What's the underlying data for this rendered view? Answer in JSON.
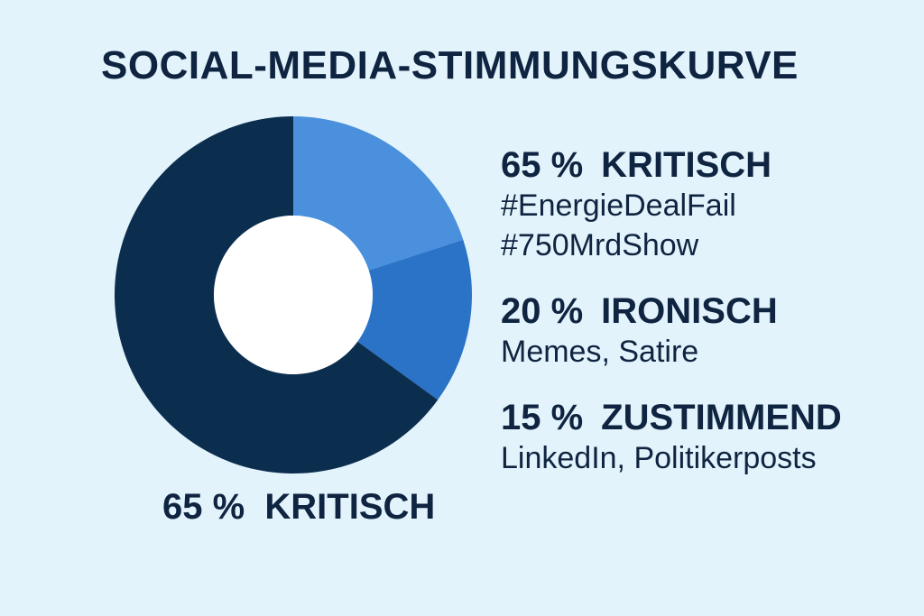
{
  "colors": {
    "background": "#e3f3fc",
    "text": "#0f2440",
    "kritisch": "#0b2d4e",
    "ironisch": "#4a90dc",
    "zustimmend": "#2b73c6"
  },
  "header": {
    "title": "SOCIAL-MEDIA-STIMMUNGSKURVE"
  },
  "caption": {
    "pct": "65 %",
    "label": "KRITISCH"
  },
  "legend": [
    {
      "pct": "65 %",
      "label": "KRITISCH",
      "lines": [
        "#EnergieDealFail",
        "#750MrdShow"
      ]
    },
    {
      "pct": "20 %",
      "label": "IRONISCH",
      "lines": [
        "Memes, Satire"
      ]
    },
    {
      "pct": "15 %",
      "label": "ZUSTIMMEND",
      "lines": [
        "LinkedIn, Politikerposts"
      ]
    }
  ],
  "chart_data": {
    "type": "pie",
    "title": "SOCIAL-MEDIA-STIMMUNGSKURVE",
    "categories": [
      "KRITISCH",
      "IRONISCH",
      "ZUSTIMMEND"
    ],
    "values": [
      65,
      20,
      15
    ],
    "colors": [
      "#0b2d4e",
      "#4a90dc",
      "#2b73c6"
    ]
  }
}
